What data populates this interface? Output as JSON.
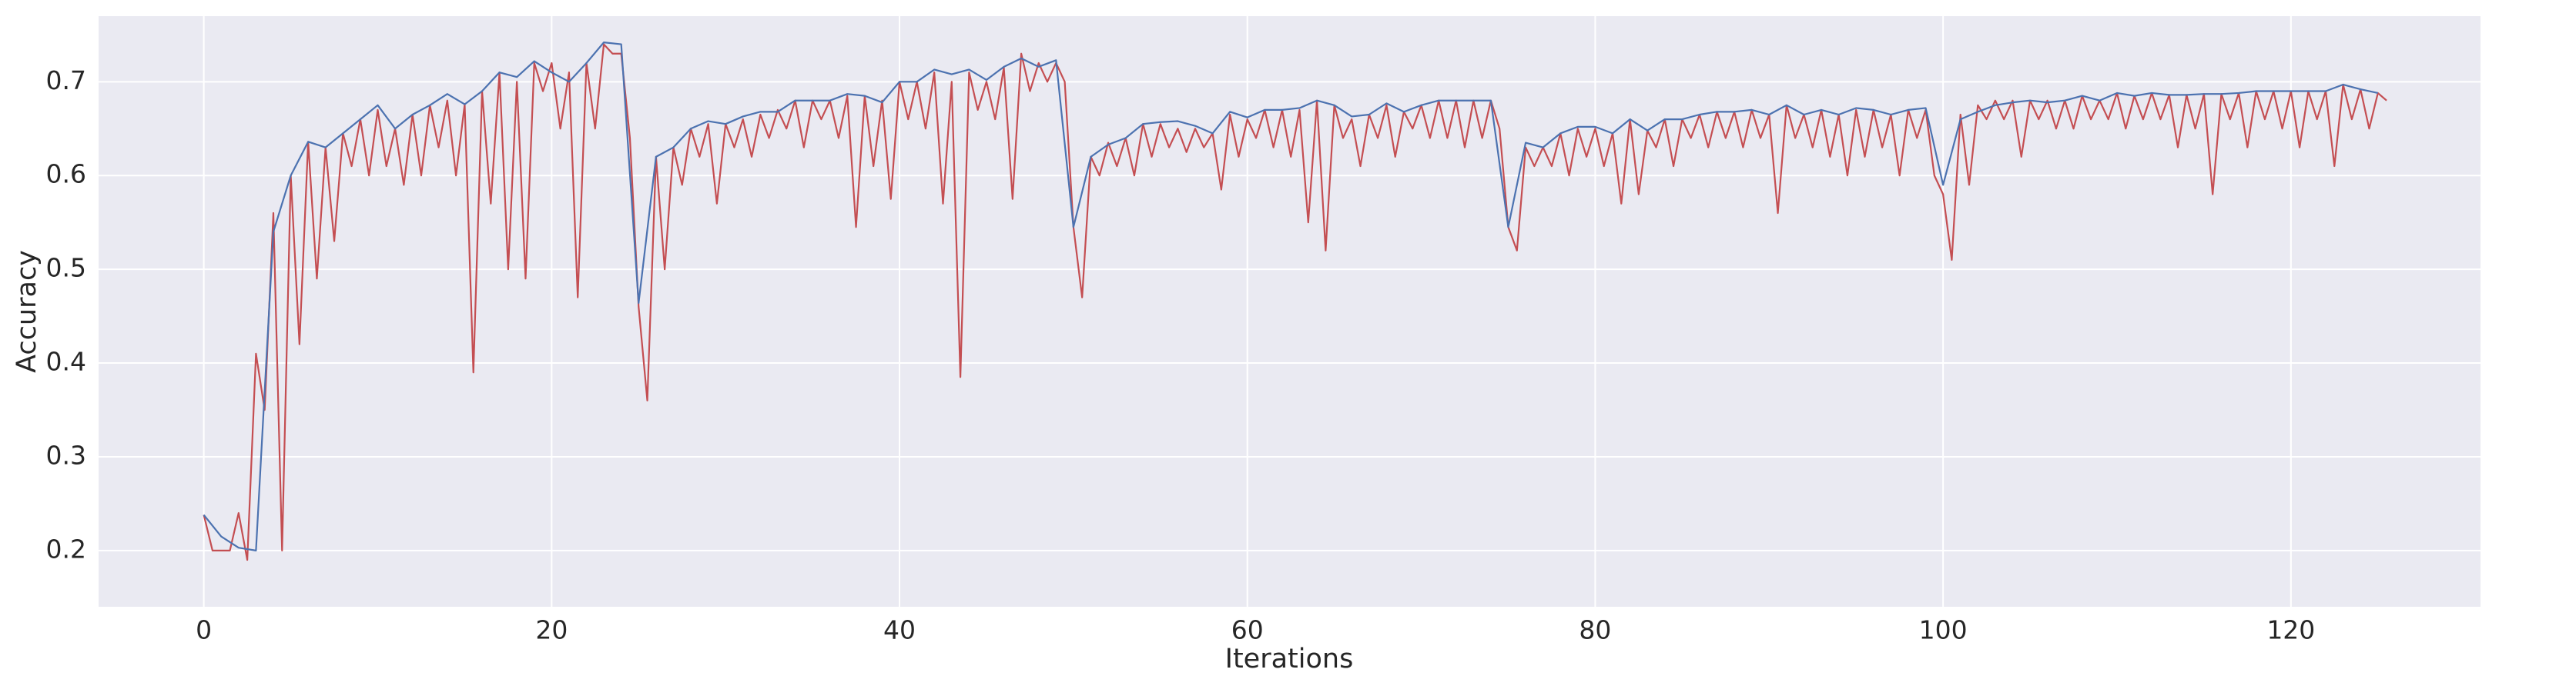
{
  "chart_data": {
    "type": "line",
    "xlabel": "Iterations",
    "ylabel": "Accuracy",
    "xlim": [
      -6.05,
      130.9
    ],
    "ylim": [
      0.14,
      0.77
    ],
    "xticks": [
      0,
      20,
      40,
      60,
      80,
      100,
      120
    ],
    "yticks": [
      0.2,
      0.3,
      0.4,
      0.5,
      0.6,
      0.7
    ],
    "grid": true,
    "background": "#eaeaf2",
    "grid_color": "#ffffff",
    "series": [
      {
        "color": "#c44e52",
        "x": [
          0,
          0.5,
          1,
          1.5,
          2,
          2.5,
          3,
          3.5,
          4,
          4.5,
          5,
          5.5,
          6,
          6.5,
          7,
          7.5,
          8,
          8.5,
          9,
          9.5,
          10,
          10.5,
          11,
          11.5,
          12,
          12.5,
          13,
          13.5,
          14,
          14.5,
          15,
          15.5,
          16,
          16.5,
          17,
          17.5,
          18,
          18.5,
          19,
          19.5,
          20,
          20.5,
          21,
          21.5,
          22,
          22.5,
          23,
          23.5,
          24,
          24.5,
          25,
          25.5,
          26,
          26.5,
          27,
          27.5,
          28,
          28.5,
          29,
          29.5,
          30,
          30.5,
          31,
          31.5,
          32,
          32.5,
          33,
          33.5,
          34,
          34.5,
          35,
          35.5,
          36,
          36.5,
          37,
          37.5,
          38,
          38.5,
          39,
          39.5,
          40,
          40.5,
          41,
          41.5,
          42,
          42.5,
          43,
          43.5,
          44,
          44.5,
          45,
          45.5,
          46,
          46.5,
          47,
          47.5,
          48,
          48.5,
          49,
          49.5,
          50,
          50.5,
          51,
          51.5,
          52,
          52.5,
          53,
          53.5,
          54,
          54.5,
          55,
          55.5,
          56,
          56.5,
          57,
          57.5,
          58,
          58.5,
          59,
          59.5,
          60,
          60.5,
          61,
          61.5,
          62,
          62.5,
          63,
          63.5,
          64,
          64.5,
          65,
          65.5,
          66,
          66.5,
          67,
          67.5,
          68,
          68.5,
          69,
          69.5,
          70,
          70.5,
          71,
          71.5,
          72,
          72.5,
          73,
          73.5,
          74,
          74.5,
          75,
          75.5,
          76,
          76.5,
          77,
          77.5,
          78,
          78.5,
          79,
          79.5,
          80,
          80.5,
          81,
          81.5,
          82,
          82.5,
          83,
          83.5,
          84,
          84.5,
          85,
          85.5,
          86,
          86.5,
          87,
          87.5,
          88,
          88.5,
          89,
          89.5,
          90,
          90.5,
          91,
          91.5,
          92,
          92.5,
          93,
          93.5,
          94,
          94.5,
          95,
          95.5,
          96,
          96.5,
          97,
          97.5,
          98,
          98.5,
          99,
          99.5,
          100,
          100.5,
          101,
          101.5,
          102,
          102.5,
          103,
          103.5,
          104,
          104.5,
          105,
          105.5,
          106,
          106.5,
          107,
          107.5,
          108,
          108.5,
          109,
          109.5,
          110,
          110.5,
          111,
          111.5,
          112,
          112.5,
          113,
          113.5,
          114,
          114.5,
          115,
          115.5,
          116,
          116.5,
          117,
          117.5,
          118,
          118.5,
          119,
          119.5,
          120,
          120.5,
          121,
          121.5,
          122,
          122.5,
          123,
          123.5,
          124,
          124.5,
          125,
          125.5
        ],
        "values": [
          0.238,
          0.2,
          0.2,
          0.2,
          0.24,
          0.19,
          0.41,
          0.35,
          0.56,
          0.2,
          0.6,
          0.42,
          0.636,
          0.49,
          0.63,
          0.53,
          0.645,
          0.61,
          0.66,
          0.6,
          0.67,
          0.61,
          0.65,
          0.59,
          0.665,
          0.6,
          0.675,
          0.63,
          0.68,
          0.6,
          0.676,
          0.39,
          0.69,
          0.57,
          0.71,
          0.5,
          0.7,
          0.49,
          0.72,
          0.69,
          0.72,
          0.65,
          0.71,
          0.47,
          0.72,
          0.65,
          0.74,
          0.73,
          0.73,
          0.64,
          0.46,
          0.36,
          0.62,
          0.5,
          0.63,
          0.59,
          0.65,
          0.62,
          0.655,
          0.57,
          0.655,
          0.63,
          0.66,
          0.62,
          0.665,
          0.64,
          0.67,
          0.65,
          0.68,
          0.63,
          0.68,
          0.66,
          0.68,
          0.64,
          0.685,
          0.545,
          0.685,
          0.61,
          0.68,
          0.575,
          0.7,
          0.66,
          0.7,
          0.65,
          0.71,
          0.57,
          0.7,
          0.385,
          0.71,
          0.67,
          0.7,
          0.66,
          0.715,
          0.575,
          0.73,
          0.69,
          0.72,
          0.7,
          0.72,
          0.7,
          0.545,
          0.47,
          0.62,
          0.6,
          0.635,
          0.61,
          0.64,
          0.6,
          0.655,
          0.62,
          0.655,
          0.63,
          0.65,
          0.625,
          0.65,
          0.63,
          0.645,
          0.585,
          0.665,
          0.62,
          0.66,
          0.64,
          0.67,
          0.63,
          0.67,
          0.62,
          0.67,
          0.55,
          0.68,
          0.52,
          0.675,
          0.64,
          0.66,
          0.61,
          0.665,
          0.64,
          0.675,
          0.62,
          0.668,
          0.65,
          0.675,
          0.64,
          0.68,
          0.64,
          0.68,
          0.63,
          0.68,
          0.64,
          0.68,
          0.65,
          0.545,
          0.52,
          0.63,
          0.61,
          0.63,
          0.61,
          0.645,
          0.6,
          0.65,
          0.62,
          0.65,
          0.61,
          0.645,
          0.57,
          0.66,
          0.58,
          0.648,
          0.63,
          0.66,
          0.61,
          0.66,
          0.64,
          0.665,
          0.63,
          0.668,
          0.64,
          0.668,
          0.63,
          0.67,
          0.64,
          0.665,
          0.56,
          0.675,
          0.64,
          0.665,
          0.63,
          0.67,
          0.62,
          0.665,
          0.6,
          0.67,
          0.62,
          0.67,
          0.63,
          0.665,
          0.6,
          0.67,
          0.64,
          0.67,
          0.6,
          0.58,
          0.51,
          0.665,
          0.59,
          0.675,
          0.66,
          0.68,
          0.66,
          0.68,
          0.62,
          0.68,
          0.66,
          0.68,
          0.65,
          0.68,
          0.65,
          0.685,
          0.66,
          0.68,
          0.66,
          0.688,
          0.65,
          0.685,
          0.66,
          0.688,
          0.66,
          0.686,
          0.63,
          0.686,
          0.65,
          0.687,
          0.58,
          0.687,
          0.66,
          0.688,
          0.63,
          0.69,
          0.66,
          0.69,
          0.65,
          0.69,
          0.63,
          0.69,
          0.66,
          0.69,
          0.61,
          0.697,
          0.66,
          0.692,
          0.65,
          0.688,
          0.68
        ]
      },
      {
        "color": "#4c72b0",
        "x": [
          0,
          1,
          2,
          3,
          4,
          5,
          6,
          7,
          8,
          9,
          10,
          11,
          12,
          13,
          14,
          15,
          16,
          17,
          18,
          19,
          20,
          21,
          22,
          23,
          24,
          25,
          26,
          27,
          28,
          29,
          30,
          31,
          32,
          33,
          34,
          35,
          36,
          37,
          38,
          39,
          40,
          41,
          42,
          43,
          44,
          45,
          46,
          47,
          48,
          49,
          50,
          51,
          52,
          53,
          54,
          55,
          56,
          57,
          58,
          59,
          60,
          61,
          62,
          63,
          64,
          65,
          66,
          67,
          68,
          69,
          70,
          71,
          72,
          73,
          74,
          75,
          76,
          77,
          78,
          79,
          80,
          81,
          82,
          83,
          84,
          85,
          86,
          87,
          88,
          89,
          90,
          91,
          92,
          93,
          94,
          95,
          96,
          97,
          98,
          99,
          100,
          101,
          102,
          103,
          104,
          105,
          106,
          107,
          108,
          109,
          110,
          111,
          112,
          113,
          114,
          115,
          116,
          117,
          118,
          119,
          120,
          121,
          122,
          123,
          124,
          125
        ],
        "values": [
          0.238,
          0.215,
          0.203,
          0.2,
          0.54,
          0.6,
          0.636,
          0.63,
          0.645,
          0.66,
          0.675,
          0.65,
          0.665,
          0.675,
          0.687,
          0.676,
          0.69,
          0.71,
          0.705,
          0.722,
          0.71,
          0.7,
          0.72,
          0.742,
          0.74,
          0.464,
          0.62,
          0.63,
          0.65,
          0.658,
          0.655,
          0.663,
          0.668,
          0.668,
          0.68,
          0.68,
          0.68,
          0.687,
          0.685,
          0.678,
          0.7,
          0.7,
          0.713,
          0.708,
          0.713,
          0.702,
          0.716,
          0.725,
          0.716,
          0.723,
          0.545,
          0.62,
          0.633,
          0.64,
          0.655,
          0.657,
          0.658,
          0.653,
          0.645,
          0.668,
          0.662,
          0.67,
          0.67,
          0.672,
          0.68,
          0.675,
          0.663,
          0.665,
          0.677,
          0.668,
          0.675,
          0.68,
          0.68,
          0.68,
          0.68,
          0.545,
          0.635,
          0.63,
          0.645,
          0.652,
          0.652,
          0.645,
          0.66,
          0.648,
          0.66,
          0.66,
          0.665,
          0.668,
          0.668,
          0.67,
          0.665,
          0.675,
          0.665,
          0.67,
          0.665,
          0.672,
          0.67,
          0.665,
          0.67,
          0.672,
          0.59,
          0.66,
          0.668,
          0.675,
          0.678,
          0.68,
          0.678,
          0.68,
          0.685,
          0.68,
          0.688,
          0.685,
          0.688,
          0.686,
          0.686,
          0.687,
          0.687,
          0.688,
          0.69,
          0.69,
          0.69,
          0.69,
          0.69,
          0.697,
          0.692,
          0.688
        ]
      }
    ]
  }
}
